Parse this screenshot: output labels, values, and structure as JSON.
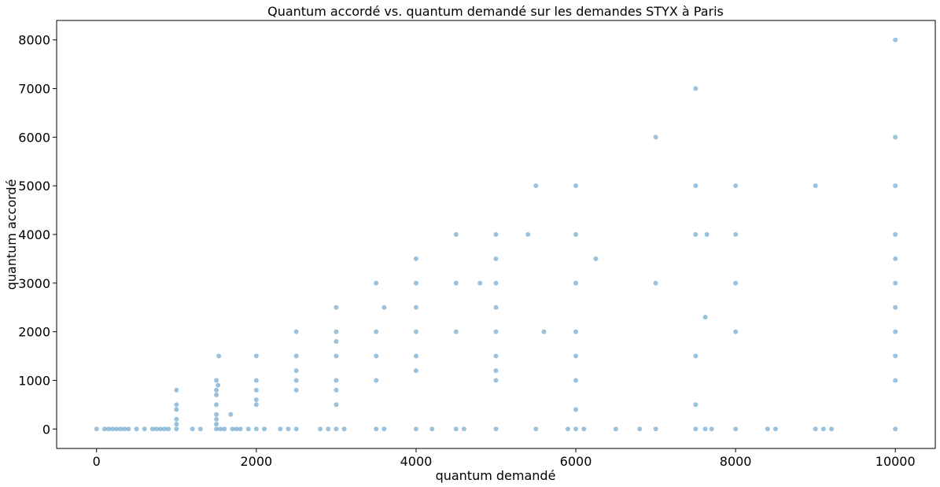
{
  "chart_data": {
    "type": "scatter",
    "title": "Quantum accordé vs. quantum demandé sur les demandes STYX à Paris",
    "xlabel": "quantum demandé",
    "ylabel": "quantum accordé",
    "xlim": [
      -500,
      10500
    ],
    "ylim": [
      -400,
      8400
    ],
    "xticks": [
      0,
      2000,
      4000,
      6000,
      8000,
      10000
    ],
    "yticks": [
      0,
      1000,
      2000,
      3000,
      4000,
      5000,
      6000,
      7000,
      8000
    ],
    "grid": false,
    "marker_color": "#1f77b4",
    "marker_alpha": 0.45,
    "points": [
      [
        0,
        0
      ],
      [
        100,
        0
      ],
      [
        150,
        0
      ],
      [
        200,
        0
      ],
      [
        250,
        0
      ],
      [
        300,
        0
      ],
      [
        350,
        0
      ],
      [
        400,
        0
      ],
      [
        500,
        0
      ],
      [
        600,
        0
      ],
      [
        700,
        0
      ],
      [
        750,
        0
      ],
      [
        800,
        0
      ],
      [
        850,
        0
      ],
      [
        900,
        0
      ],
      [
        1000,
        0
      ],
      [
        1000,
        100
      ],
      [
        1000,
        200
      ],
      [
        1000,
        400
      ],
      [
        1000,
        500
      ],
      [
        1000,
        800
      ],
      [
        1200,
        0
      ],
      [
        1300,
        0
      ],
      [
        1500,
        0
      ],
      [
        1500,
        100
      ],
      [
        1500,
        200
      ],
      [
        1500,
        300
      ],
      [
        1500,
        500
      ],
      [
        1500,
        700
      ],
      [
        1500,
        800
      ],
      [
        1500,
        1000
      ],
      [
        1520,
        900
      ],
      [
        1530,
        1500
      ],
      [
        1550,
        0
      ],
      [
        1600,
        0
      ],
      [
        1680,
        300
      ],
      [
        1700,
        0
      ],
      [
        1750,
        0
      ],
      [
        1800,
        0
      ],
      [
        1900,
        0
      ],
      [
        2000,
        0
      ],
      [
        2000,
        500
      ],
      [
        2000,
        600
      ],
      [
        2000,
        800
      ],
      [
        2000,
        1000
      ],
      [
        2000,
        1500
      ],
      [
        2100,
        0
      ],
      [
        2300,
        0
      ],
      [
        2400,
        0
      ],
      [
        2500,
        0
      ],
      [
        2500,
        800
      ],
      [
        2500,
        1000
      ],
      [
        2500,
        1200
      ],
      [
        2500,
        1500
      ],
      [
        2500,
        2000
      ],
      [
        2800,
        0
      ],
      [
        2900,
        0
      ],
      [
        3000,
        0
      ],
      [
        3000,
        500
      ],
      [
        3000,
        800
      ],
      [
        3000,
        1000
      ],
      [
        3000,
        1500
      ],
      [
        3000,
        1800
      ],
      [
        3000,
        2000
      ],
      [
        3000,
        2500
      ],
      [
        3100,
        0
      ],
      [
        3500,
        0
      ],
      [
        3500,
        1000
      ],
      [
        3500,
        1500
      ],
      [
        3500,
        2000
      ],
      [
        3500,
        3000
      ],
      [
        3600,
        2500
      ],
      [
        3600,
        0
      ],
      [
        4000,
        0
      ],
      [
        4000,
        1200
      ],
      [
        4000,
        1500
      ],
      [
        4000,
        2000
      ],
      [
        4000,
        2500
      ],
      [
        4000,
        3000
      ],
      [
        4000,
        3500
      ],
      [
        4200,
        0
      ],
      [
        4500,
        0
      ],
      [
        4500,
        2000
      ],
      [
        4500,
        3000
      ],
      [
        4500,
        4000
      ],
      [
        4600,
        0
      ],
      [
        4800,
        3000
      ],
      [
        5000,
        0
      ],
      [
        5000,
        1000
      ],
      [
        5000,
        1200
      ],
      [
        5000,
        1500
      ],
      [
        5000,
        2000
      ],
      [
        5000,
        2500
      ],
      [
        5000,
        3000
      ],
      [
        5000,
        3500
      ],
      [
        5000,
        4000
      ],
      [
        5400,
        4000
      ],
      [
        5500,
        5000
      ],
      [
        5500,
        0
      ],
      [
        5600,
        2000
      ],
      [
        5900,
        0
      ],
      [
        6000,
        0
      ],
      [
        6000,
        400
      ],
      [
        6000,
        1000
      ],
      [
        6000,
        1500
      ],
      [
        6000,
        2000
      ],
      [
        6000,
        3000
      ],
      [
        6000,
        4000
      ],
      [
        6000,
        5000
      ],
      [
        6100,
        0
      ],
      [
        6250,
        3500
      ],
      [
        6500,
        0
      ],
      [
        6800,
        0
      ],
      [
        7000,
        0
      ],
      [
        7000,
        3000
      ],
      [
        7000,
        6000
      ],
      [
        7500,
        0
      ],
      [
        7500,
        500
      ],
      [
        7500,
        1500
      ],
      [
        7500,
        4000
      ],
      [
        7500,
        5000
      ],
      [
        7500,
        7000
      ],
      [
        7620,
        2300
      ],
      [
        7620,
        0
      ],
      [
        7640,
        4000
      ],
      [
        7700,
        0
      ],
      [
        8000,
        0
      ],
      [
        8000,
        2000
      ],
      [
        8000,
        3000
      ],
      [
        8000,
        4000
      ],
      [
        8000,
        5000
      ],
      [
        8400,
        0
      ],
      [
        8500,
        0
      ],
      [
        9000,
        0
      ],
      [
        9000,
        5000
      ],
      [
        9100,
        0
      ],
      [
        9200,
        0
      ],
      [
        10000,
        0
      ],
      [
        10000,
        1000
      ],
      [
        10000,
        1500
      ],
      [
        10000,
        2000
      ],
      [
        10000,
        2500
      ],
      [
        10000,
        3000
      ],
      [
        10000,
        3500
      ],
      [
        10000,
        4000
      ],
      [
        10000,
        5000
      ],
      [
        10000,
        6000
      ],
      [
        10000,
        8000
      ]
    ]
  }
}
